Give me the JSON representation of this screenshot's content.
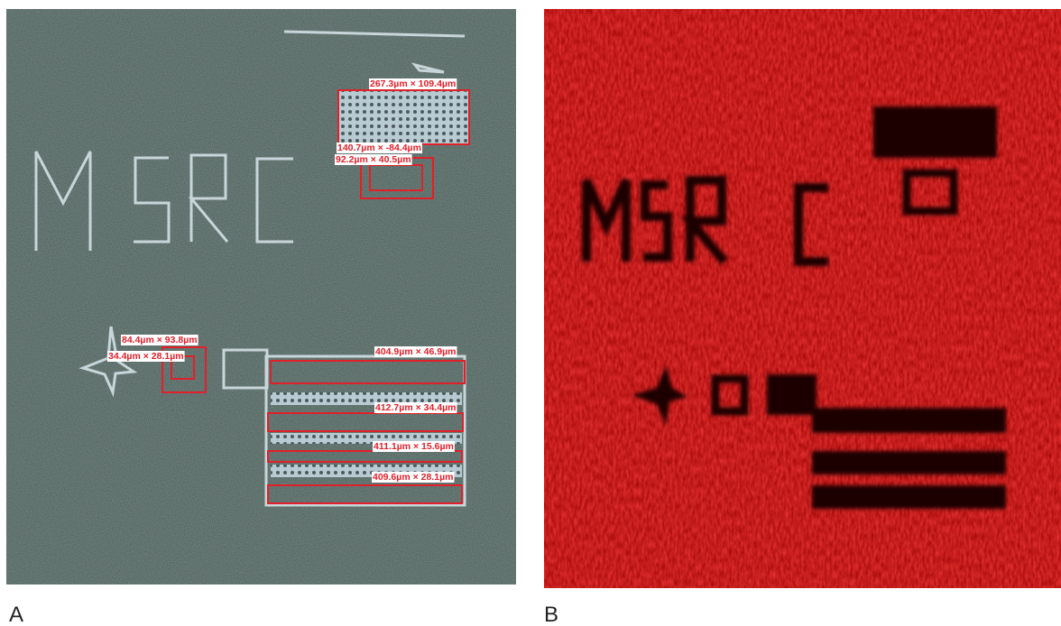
{
  "panels": [
    {
      "label": "A",
      "annotations": [
        "267.3µm × 109.4µm",
        "140.7µm × -84.4µm",
        "92.2µm × 40.5µm",
        "84.4µm × 93.8µm",
        "34.4µm × 28.1µm",
        "404.9µm × 46.9µm",
        "412.7µm × 34.4µm",
        "411.1µm × 15.6µm",
        "409.6µm × 28.1µm"
      ]
    },
    {
      "label": "B"
    }
  ]
}
